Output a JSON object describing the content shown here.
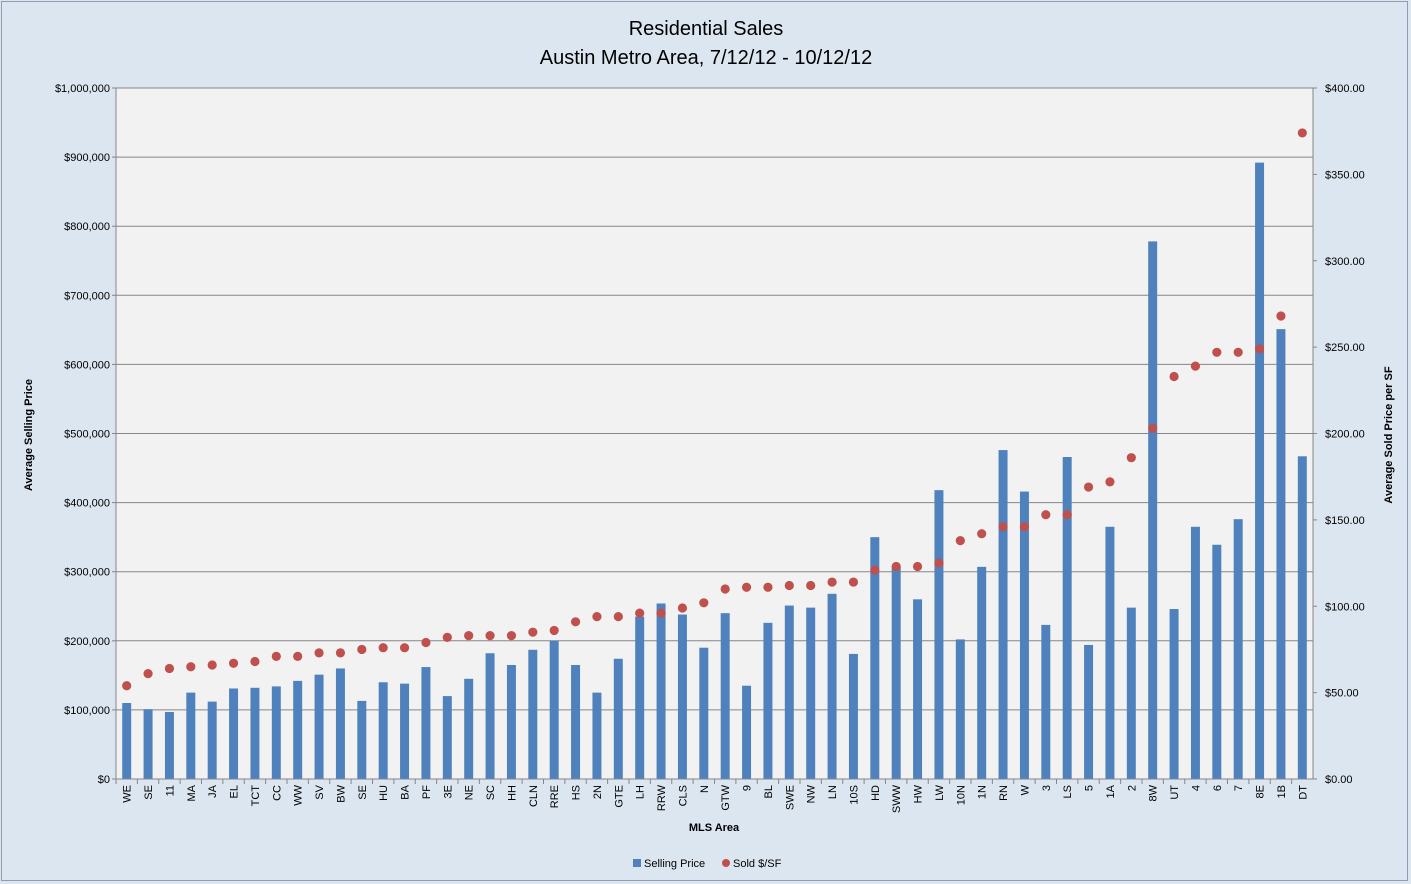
{
  "chart_data": {
    "type": "bar",
    "title": "Residential Sales",
    "subtitle": "Austin Metro Area, 7/12/12 - 10/12/12",
    "xlabel": "MLS Area",
    "ylabel": "Average Selling Price",
    "y2label": "Average Sold Price per SF",
    "ylim": [
      0,
      1000000
    ],
    "y2lim": [
      0,
      400
    ],
    "grid": true,
    "legend_position": "bottom",
    "y_ticks": [
      "$0",
      "$100,000",
      "$200,000",
      "$300,000",
      "$400,000",
      "$500,000",
      "$600,000",
      "$700,000",
      "$800,000",
      "$900,000",
      "$1,000,000"
    ],
    "y2_ticks": [
      "$0.00",
      "$50.00",
      "$100.00",
      "$150.00",
      "$200.00",
      "$250.00",
      "$300.00",
      "$350.00",
      "$400.00"
    ],
    "categories": [
      "WE",
      "SE",
      "11",
      "MA",
      "JA",
      "EL",
      "TCT",
      "CC",
      "WW",
      "SV",
      "BW",
      "SE",
      "HU",
      "BA",
      "PF",
      "3E",
      "NE",
      "SC",
      "HH",
      "CLN",
      "RRE",
      "HS",
      "2N",
      "GTE",
      "LH",
      "RRW",
      "CLS",
      "N",
      "GTW",
      "9",
      "BL",
      "SWE",
      "NW",
      "LN",
      "10S",
      "HD",
      "SWW",
      "HW",
      "LW",
      "10N",
      "1N",
      "RN",
      "W",
      "3",
      "LS",
      "5",
      "1A",
      "2",
      "8W",
      "UT",
      "4",
      "6",
      "7",
      "8E",
      "1B",
      "DT"
    ],
    "series": [
      {
        "name": "Selling Price",
        "type": "bar",
        "axis": "left",
        "color": "#4f81bd",
        "values": [
          110000,
          101000,
          97000,
          125000,
          112000,
          131000,
          132000,
          134000,
          142000,
          151000,
          160000,
          113000,
          140000,
          138000,
          162000,
          120000,
          145000,
          182000,
          165000,
          187000,
          200000,
          165000,
          125000,
          174000,
          235000,
          254000,
          238000,
          190000,
          240000,
          135000,
          226000,
          251000,
          248000,
          268000,
          181000,
          350000,
          307000,
          260000,
          418000,
          202000,
          307000,
          476000,
          416000,
          223000,
          466000,
          194000,
          365000,
          248000,
          778000,
          246000,
          365000,
          339000,
          376000,
          892000,
          651000,
          467000
        ]
      },
      {
        "name": "Sold $/SF",
        "type": "scatter",
        "axis": "right",
        "color": "#c0504d",
        "values": [
          54,
          61,
          64,
          65,
          66,
          67,
          68,
          71,
          71,
          73,
          73,
          75,
          76,
          76,
          79,
          82,
          83,
          83,
          83,
          85,
          86,
          91,
          94,
          94,
          96,
          96,
          99,
          102,
          110,
          111,
          111,
          112,
          112,
          114,
          114,
          121,
          123,
          123,
          125,
          138,
          142,
          146,
          146,
          153,
          153,
          169,
          172,
          186,
          203,
          233,
          239,
          247,
          247,
          249,
          268,
          374
        ]
      }
    ]
  }
}
